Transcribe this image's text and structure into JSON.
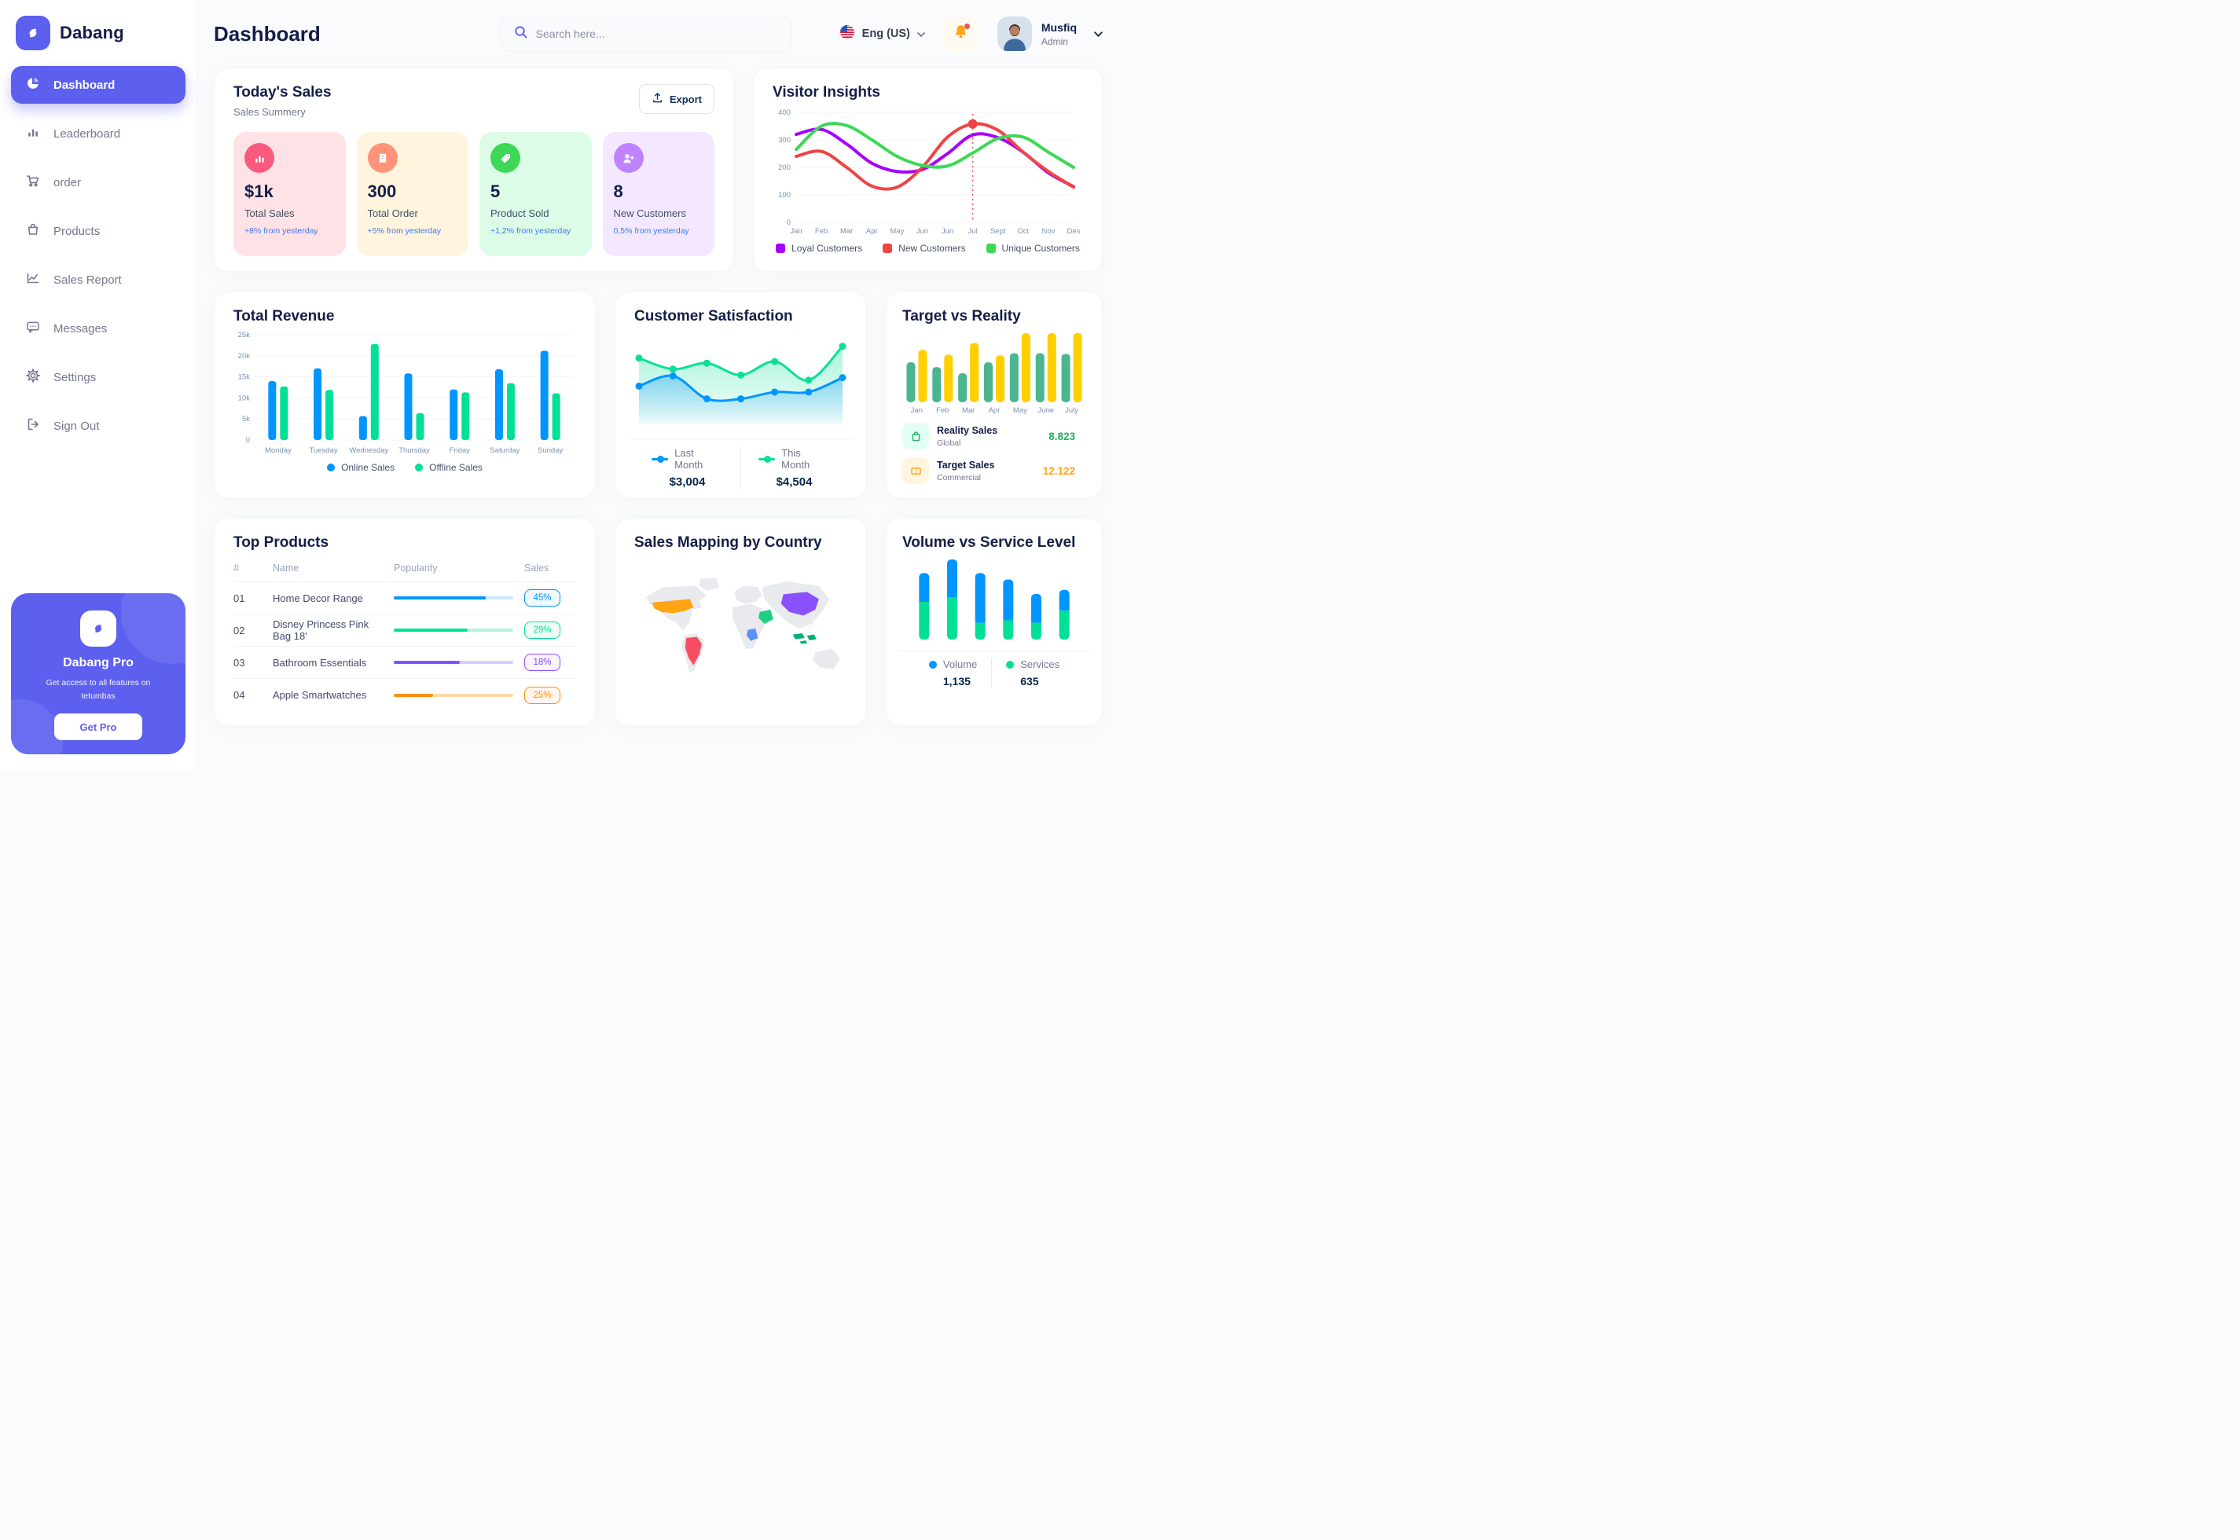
{
  "app": {
    "brand": "Dabang"
  },
  "header": {
    "title": "Dashboard",
    "search_placeholder": "Search here...",
    "language": "Eng (US)",
    "user_name": "Musfiq",
    "user_role": "Admin"
  },
  "sidebar": {
    "items": [
      {
        "label": "Dashboard"
      },
      {
        "label": "Leaderboard"
      },
      {
        "label": "order"
      },
      {
        "label": "Products"
      },
      {
        "label": "Sales Report"
      },
      {
        "label": "Messages"
      },
      {
        "label": "Settings"
      },
      {
        "label": "Sign Out"
      }
    ],
    "promo": {
      "title": "Dabang Pro",
      "subtitle": "Get access to all features on tetumbas",
      "cta": "Get Pro"
    }
  },
  "today_sales": {
    "title": "Today's Sales",
    "subtitle": "Sales Summery",
    "export_label": "Export",
    "stats": [
      {
        "value": "$1k",
        "label": "Total Sales",
        "delta": "+8% from yesterday",
        "bg": "#FFE2E5",
        "icon_bg": "#FA5A7D"
      },
      {
        "value": "300",
        "label": "Total Order",
        "delta": "+5% from yesterday",
        "bg": "#FFF4DE",
        "icon_bg": "#FF947A"
      },
      {
        "value": "5",
        "label": "Product Sold",
        "delta": "+1,2% from yesterday",
        "bg": "#DCFCE7",
        "icon_bg": "#3CD856"
      },
      {
        "value": "8",
        "label": "New Customers",
        "delta": "0,5% from yesterday",
        "bg": "#F3E8FF",
        "icon_bg": "#BF83FF"
      }
    ]
  },
  "chart_data": [
    {
      "id": "visitor_insights",
      "type": "line",
      "title": "Visitor Insights",
      "x": [
        "Jan",
        "Feb",
        "Mar",
        "Apr",
        "May",
        "Jun",
        "Jun",
        "Jul",
        "Sept",
        "Oct",
        "Nov",
        "Des"
      ],
      "ylim": [
        0,
        400
      ],
      "yticks": [
        0,
        100,
        200,
        300,
        400
      ],
      "grid": true,
      "legend_position": "bottom",
      "marker": {
        "x_index": 7,
        "series": "New Customers"
      },
      "series": [
        {
          "name": "Loyal Customers",
          "color": "#A700FF",
          "values": [
            320,
            338,
            285,
            215,
            185,
            192,
            250,
            318,
            308,
            255,
            180,
            130
          ]
        },
        {
          "name": "New Customers",
          "color": "#EF4444",
          "values": [
            240,
            258,
            200,
            132,
            128,
            200,
            310,
            358,
            335,
            255,
            185,
            128
          ]
        },
        {
          "name": "Unique Customers",
          "color": "#3CD856",
          "values": [
            265,
            350,
            352,
            300,
            240,
            207,
            205,
            252,
            305,
            310,
            255,
            200
          ]
        }
      ]
    },
    {
      "id": "total_revenue",
      "type": "bar",
      "title": "Total Revenue",
      "categories": [
        "Monday",
        "Tuesday",
        "Wednesday",
        "Thursday",
        "Friday",
        "Saturday",
        "Sunday"
      ],
      "ylim": [
        0,
        25000
      ],
      "yticks": [
        0,
        5000,
        10000,
        15000,
        20000,
        25000
      ],
      "yticks_labels": [
        "0",
        "5k",
        "10k",
        "15k",
        "20k",
        "25k"
      ],
      "grid": true,
      "legend_position": "bottom",
      "series": [
        {
          "name": "Online Sales",
          "color": "#0095FF",
          "values": [
            14000,
            17000,
            5700,
            15800,
            12000,
            16800,
            21200
          ]
        },
        {
          "name": "Offline Sales",
          "color": "#00E096",
          "values": [
            12700,
            11900,
            22800,
            6400,
            11300,
            13500,
            11100
          ]
        }
      ]
    },
    {
      "id": "customer_satisfaction",
      "type": "area",
      "title": "Customer Satisfaction",
      "ylim": [
        0,
        100
      ],
      "legend_position": "bottom",
      "series": [
        {
          "name": "Last Month",
          "color": "#0095FF",
          "total": "$3,004",
          "values": [
            45,
            57,
            30,
            30,
            38,
            38,
            55
          ]
        },
        {
          "name": "This Month",
          "color": "#07E098",
          "total": "$4,504",
          "values": [
            78,
            65,
            72,
            58,
            74,
            52,
            92
          ]
        }
      ]
    },
    {
      "id": "target_vs_reality",
      "type": "bar",
      "title": "Target vs Reality",
      "categories": [
        "Jan",
        "Feb",
        "Mar",
        "Apr",
        "May",
        "June",
        "July"
      ],
      "ylim": [
        0,
        10
      ],
      "series": [
        {
          "name": "Reality Sales",
          "color": "#4AB58E",
          "values": [
            5.8,
            5.1,
            4.2,
            5.8,
            7.1,
            7.1,
            7.0
          ]
        },
        {
          "name": "Target Sales",
          "color": "#FFCF00",
          "values": [
            7.6,
            6.9,
            8.6,
            6.8,
            10,
            10,
            10
          ]
        }
      ],
      "legend": [
        {
          "name": "Reality Sales",
          "sub": "Global",
          "value": "8.823",
          "value_color": "#27AE60",
          "tile_bg": "#E2FFF3"
        },
        {
          "name": "Target Sales",
          "sub": "Commercial",
          "value": "12.122",
          "value_color": "#FFA412",
          "tile_bg": "#FFF4DE"
        }
      ]
    },
    {
      "id": "top_products",
      "type": "table",
      "title": "Top Products",
      "columns": [
        "#",
        "Name",
        "Popularity",
        "Sales"
      ],
      "rows": [
        {
          "num": "01",
          "name": "Home Decor Range",
          "popularity": 77,
          "sales": "45%",
          "color": "#0095FF",
          "track": "#CDE7FF",
          "badge_bg": "#F0F9FF"
        },
        {
          "num": "02",
          "name": "Disney Princess Pink Bag 18'",
          "popularity": 62,
          "sales": "29%",
          "color": "#00E096",
          "track": "#B5F3DA",
          "badge_bg": "#F0FDF4"
        },
        {
          "num": "03",
          "name": "Bathroom Essentials",
          "popularity": 55,
          "sales": "18%",
          "color": "#884DFF",
          "track": "#DCC8FF",
          "badge_bg": "#FAF5FF"
        },
        {
          "num": "04",
          "name": "Apple Smartwatches",
          "popularity": 33,
          "sales": "25%",
          "color": "#FF8F0D",
          "track": "#FFD9A6",
          "badge_bg": "#FFF7ED"
        }
      ]
    },
    {
      "id": "sales_mapping",
      "type": "map",
      "title": "Sales Mapping by Country",
      "countries": [
        {
          "name": "United States",
          "color": "#FFA412"
        },
        {
          "name": "Brazil",
          "color": "#F64E60"
        },
        {
          "name": "DR Congo",
          "color": "#5B8FF9"
        },
        {
          "name": "Saudi Arabia",
          "color": "#1BD084"
        },
        {
          "name": "China",
          "color": "#8950FC"
        },
        {
          "name": "Indonesia",
          "color": "#00B074"
        }
      ]
    },
    {
      "id": "volume_service",
      "type": "bar",
      "stacked": true,
      "title": "Volume vs Service Level",
      "legend_position": "bottom",
      "series": [
        {
          "name": "Volume",
          "color": "#0095FF",
          "total_label": "1,135",
          "values": [
            36,
            47,
            62,
            51,
            36,
            26
          ]
        },
        {
          "name": "Services",
          "color": "#00E096",
          "total_label": "635",
          "values": [
            47,
            53,
            21,
            24,
            21,
            36
          ]
        }
      ]
    }
  ]
}
